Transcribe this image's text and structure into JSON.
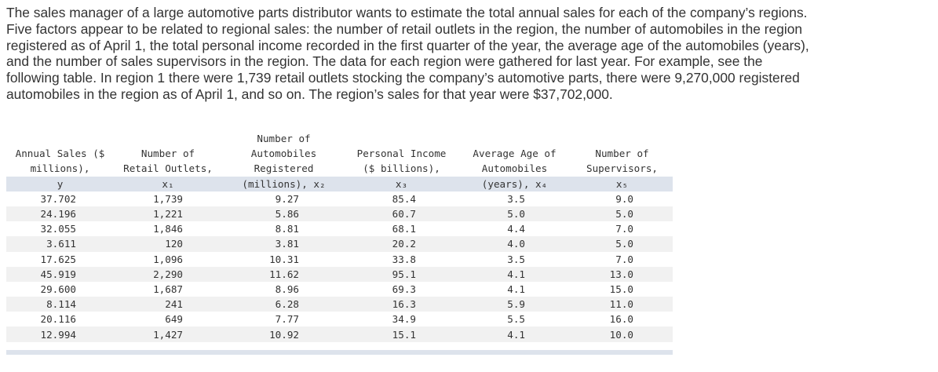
{
  "paragraph": {
    "lines": [
      "The sales manager of a large automotive parts distributor wants to estimate the total annual sales for each of the company’s regions.",
      "Five factors appear to be related to regional sales: the number of retail outlets in the region, the number of automobiles in the region",
      "registered as of April 1, the total personal income recorded in the first quarter of the year, the average age of the automobiles (years),",
      "and the number of sales supervisors in the region. The data for each region were gathered for last year. For example, see the",
      "following table. In region 1 there were 1,739 retail outlets stocking the company’s automotive parts, there were 9,270,000 registered",
      "automobiles in the region as of April 1, and so on. The region’s sales for that year were $37,702,000."
    ]
  },
  "table": {
    "header": [
      [
        "Annual Sales ($",
        "millions),",
        "y"
      ],
      [
        "Number of",
        "Retail Outlets,",
        "x₁"
      ],
      [
        "Number of",
        "Automobiles",
        "Registered",
        "(millions), x₂"
      ],
      [
        "Personal Income",
        "($ billions),",
        "x₃"
      ],
      [
        "Average Age of",
        "Automobiles",
        "(years), x₄"
      ],
      [
        "Number of",
        "Supervisors,",
        "x₅"
      ]
    ],
    "rows": [
      [
        "37.702",
        "1,739",
        "9.27",
        "85.4",
        "3.5",
        "9.0"
      ],
      [
        "24.196",
        "1,221",
        "5.86",
        "60.7",
        "5.0",
        "5.0"
      ],
      [
        "32.055",
        "1,846",
        "8.81",
        "68.1",
        "4.4",
        "7.0"
      ],
      [
        "3.611",
        "120",
        "3.81",
        "20.2",
        "4.0",
        "5.0"
      ],
      [
        "17.625",
        "1,096",
        "10.31",
        "33.8",
        "3.5",
        "7.0"
      ],
      [
        "45.919",
        "2,290",
        "11.62",
        "95.1",
        "4.1",
        "13.0"
      ],
      [
        "29.600",
        "1,687",
        "8.96",
        "69.3",
        "4.1",
        "15.0"
      ],
      [
        "8.114",
        "241",
        "6.28",
        "16.3",
        "5.9",
        "11.0"
      ],
      [
        "20.116",
        "649",
        "7.77",
        "34.9",
        "5.5",
        "16.0"
      ],
      [
        "12.994",
        "1,427",
        "10.92",
        "15.1",
        "4.1",
        "10.0"
      ]
    ]
  }
}
